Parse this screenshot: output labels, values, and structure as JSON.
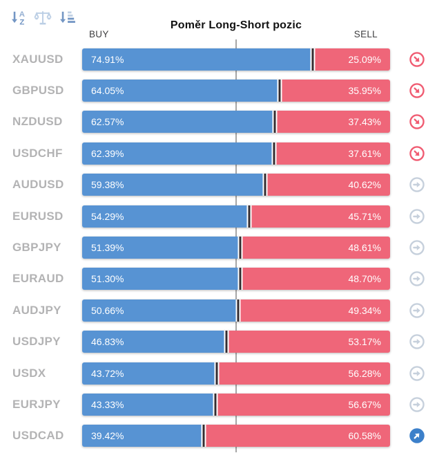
{
  "header": {
    "title": "Poměr Long-Short pozic",
    "buy_label": "BUY",
    "sell_label": "SELL",
    "sort_icons": [
      {
        "name": "sort-alphabetical-icon"
      },
      {
        "name": "scales-balance-icon"
      },
      {
        "name": "sort-amount-icon"
      }
    ]
  },
  "colors": {
    "buy_bar": "#5793d3",
    "sell_bar": "#ef6679",
    "bar_divider": "#352d31",
    "center_line": "#a6a6a6",
    "trend_down": "#f05c72",
    "trend_neutral": "#c6d0dc",
    "trend_up": "#3c80ca",
    "symbol_text": "#b3b3b4"
  },
  "rows": [
    {
      "symbol": "XAUUSD",
      "buy_pct": 74.91,
      "sell_pct": 25.09,
      "buy_label": "74.91%",
      "sell_label": "25.09%",
      "trend": "down"
    },
    {
      "symbol": "GBPUSD",
      "buy_pct": 64.05,
      "sell_pct": 35.95,
      "buy_label": "64.05%",
      "sell_label": "35.95%",
      "trend": "down"
    },
    {
      "symbol": "NZDUSD",
      "buy_pct": 62.57,
      "sell_pct": 37.43,
      "buy_label": "62.57%",
      "sell_label": "37.43%",
      "trend": "down"
    },
    {
      "symbol": "USDCHF",
      "buy_pct": 62.39,
      "sell_pct": 37.61,
      "buy_label": "62.39%",
      "sell_label": "37.61%",
      "trend": "down"
    },
    {
      "symbol": "AUDUSD",
      "buy_pct": 59.38,
      "sell_pct": 40.62,
      "buy_label": "59.38%",
      "sell_label": "40.62%",
      "trend": "neutral"
    },
    {
      "symbol": "EURUSD",
      "buy_pct": 54.29,
      "sell_pct": 45.71,
      "buy_label": "54.29%",
      "sell_label": "45.71%",
      "trend": "neutral"
    },
    {
      "symbol": "GBPJPY",
      "buy_pct": 51.39,
      "sell_pct": 48.61,
      "buy_label": "51.39%",
      "sell_label": "48.61%",
      "trend": "neutral"
    },
    {
      "symbol": "EURAUD",
      "buy_pct": 51.3,
      "sell_pct": 48.7,
      "buy_label": "51.30%",
      "sell_label": "48.70%",
      "trend": "neutral"
    },
    {
      "symbol": "AUDJPY",
      "buy_pct": 50.66,
      "sell_pct": 49.34,
      "buy_label": "50.66%",
      "sell_label": "49.34%",
      "trend": "neutral"
    },
    {
      "symbol": "USDJPY",
      "buy_pct": 46.83,
      "sell_pct": 53.17,
      "buy_label": "46.83%",
      "sell_label": "53.17%",
      "trend": "neutral"
    },
    {
      "symbol": "USDX",
      "buy_pct": 43.72,
      "sell_pct": 56.28,
      "buy_label": "43.72%",
      "sell_label": "56.28%",
      "trend": "neutral"
    },
    {
      "symbol": "EURJPY",
      "buy_pct": 43.33,
      "sell_pct": 56.67,
      "buy_label": "43.33%",
      "sell_label": "56.67%",
      "trend": "neutral"
    },
    {
      "symbol": "USDCAD",
      "buy_pct": 39.42,
      "sell_pct": 60.58,
      "buy_label": "39.42%",
      "sell_label": "60.58%",
      "trend": "up"
    }
  ],
  "chart_data": {
    "type": "bar",
    "orientation": "horizontal-stacked",
    "title": "Poměr Long-Short pozic",
    "categories": [
      "XAUUSD",
      "GBPUSD",
      "NZDUSD",
      "USDCHF",
      "AUDUSD",
      "EURUSD",
      "GBPJPY",
      "EURAUD",
      "AUDJPY",
      "USDJPY",
      "USDX",
      "EURJPY",
      "USDCAD"
    ],
    "series": [
      {
        "name": "BUY",
        "values": [
          74.91,
          64.05,
          62.57,
          62.39,
          59.38,
          54.29,
          51.39,
          51.3,
          50.66,
          46.83,
          43.72,
          43.33,
          39.42
        ]
      },
      {
        "name": "SELL",
        "values": [
          25.09,
          35.95,
          37.43,
          37.61,
          40.62,
          45.71,
          48.61,
          48.7,
          49.34,
          53.17,
          56.28,
          56.67,
          60.58
        ]
      }
    ],
    "xlim": [
      0,
      100
    ],
    "reference_line_pct": 50,
    "legend_position": "top"
  }
}
